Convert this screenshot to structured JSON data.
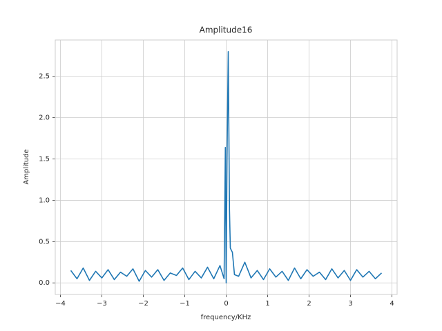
{
  "chart_data": {
    "type": "line",
    "title": "Amplitude16",
    "x_label": "frequency/KHz",
    "y_label": "Amplitude",
    "x": [
      -3.75,
      -3.6,
      -3.45,
      -3.3,
      -3.15,
      -3.0,
      -2.85,
      -2.7,
      -2.55,
      -2.4,
      -2.25,
      -2.1,
      -1.95,
      -1.8,
      -1.65,
      -1.5,
      -1.35,
      -1.2,
      -1.05,
      -0.9,
      -0.75,
      -0.6,
      -0.45,
      -0.3,
      -0.15,
      -0.05,
      -0.02,
      0,
      0.02,
      0.05,
      0.08,
      0.1,
      0.15,
      0.2,
      0.3,
      0.45,
      0.6,
      0.75,
      0.9,
      1.05,
      1.2,
      1.35,
      1.5,
      1.65,
      1.8,
      1.95,
      2.1,
      2.25,
      2.4,
      2.55,
      2.7,
      2.85,
      3.0,
      3.15,
      3.3,
      3.45,
      3.6,
      3.75
    ],
    "series": [
      {
        "color": "#1f77b4",
        "values": [
          0.15,
          0.05,
          0.18,
          0.03,
          0.14,
          0.06,
          0.16,
          0.04,
          0.13,
          0.08,
          0.17,
          0.02,
          0.15,
          0.07,
          0.16,
          0.03,
          0.12,
          0.09,
          0.18,
          0.04,
          0.14,
          0.06,
          0.19,
          0.05,
          0.21,
          0.05,
          1.64,
          0.0,
          1.5,
          2.8,
          0.88,
          0.42,
          0.37,
          0.1,
          0.08,
          0.25,
          0.06,
          0.15,
          0.04,
          0.17,
          0.07,
          0.14,
          0.03,
          0.18,
          0.05,
          0.16,
          0.08,
          0.13,
          0.04,
          0.17,
          0.06,
          0.15,
          0.03,
          0.16,
          0.07,
          0.14,
          0.05,
          0.12
        ]
      }
    ],
    "xlim": [
      -4.125,
      4.125
    ],
    "ylim": [
      -0.14,
      2.94
    ],
    "xticks": [
      {
        "value": -4,
        "label": "−4"
      },
      {
        "value": -3,
        "label": "−3"
      },
      {
        "value": -2,
        "label": "−2"
      },
      {
        "value": -1,
        "label": "−1"
      },
      0,
      1,
      2,
      3,
      4
    ],
    "yticks": [
      {
        "value": 0,
        "label": "0.0"
      },
      0.5,
      {
        "value": 1,
        "label": "1.0"
      },
      1.5,
      {
        "value": 2,
        "label": "2.0"
      },
      2.5
    ],
    "grid": true
  }
}
